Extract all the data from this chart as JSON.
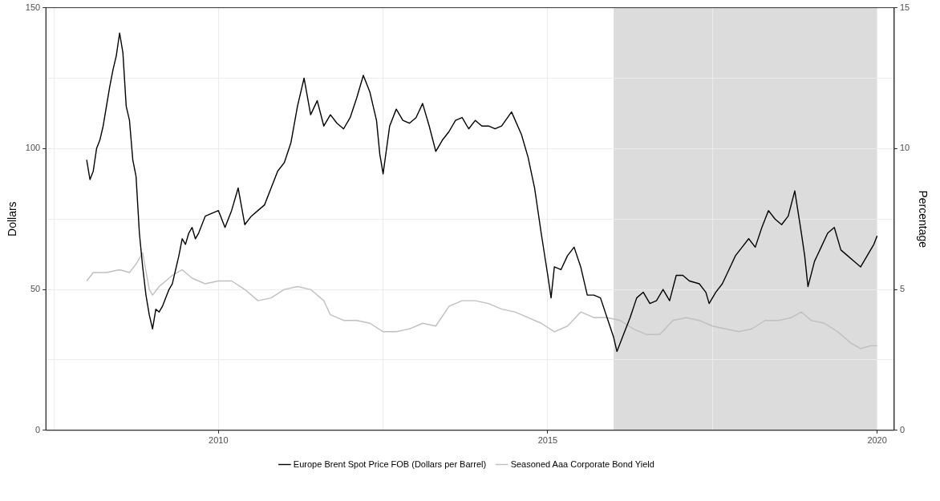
{
  "chart_data": {
    "type": "line",
    "ylabel": "Dollars",
    "y2label": "Percentage",
    "xlim": [
      2007.38,
      2020.26
    ],
    "xticks": [
      {
        "value": 2007.5,
        "label": null
      },
      2010,
      {
        "value": 2012.5,
        "label": null
      },
      2015,
      {
        "value": 2017.5,
        "label": null
      },
      2020
    ],
    "ylim": [
      0,
      150
    ],
    "yticks": [
      0,
      {
        "value": 25,
        "label": null
      },
      50,
      {
        "value": 75,
        "label": null
      },
      100,
      {
        "value": 125,
        "label": null
      },
      150
    ],
    "y2lim": [
      0,
      15
    ],
    "y2ticks": [
      0,
      5,
      10,
      15
    ],
    "grid": true,
    "legend": "bottom",
    "line_style": "solid",
    "marker": "none",
    "bands": [
      {
        "axis": "x",
        "from": 2016.0,
        "to": 2020.0,
        "color": "#dcdcdc"
      }
    ],
    "series": [
      {
        "name": "Europe Brent Spot Price FOB (Dollars per Barrel)",
        "color": "#000000",
        "x": [
          2008.0,
          2008.05,
          2008.1,
          2008.15,
          2008.2,
          2008.25,
          2008.3,
          2008.35,
          2008.4,
          2008.45,
          2008.5,
          2008.55,
          2008.6,
          2008.65,
          2008.7,
          2008.75,
          2008.8,
          2008.85,
          2008.9,
          2008.95,
          2009.0,
          2009.05,
          2009.1,
          2009.15,
          2009.2,
          2009.25,
          2009.3,
          2009.4,
          2009.45,
          2009.5,
          2009.55,
          2009.6,
          2009.65,
          2009.7,
          2009.8,
          2009.9,
          2010.0,
          2010.1,
          2010.2,
          2010.3,
          2010.4,
          2010.5,
          2010.6,
          2010.7,
          2010.8,
          2010.9,
          2011.0,
          2011.1,
          2011.2,
          2011.3,
          2011.4,
          2011.5,
          2011.6,
          2011.7,
          2011.8,
          2011.9,
          2012.0,
          2012.1,
          2012.2,
          2012.3,
          2012.4,
          2012.45,
          2012.5,
          2012.6,
          2012.7,
          2012.8,
          2012.9,
          2013.0,
          2013.1,
          2013.2,
          2013.3,
          2013.4,
          2013.5,
          2013.6,
          2013.7,
          2013.8,
          2013.9,
          2014.0,
          2014.1,
          2014.2,
          2014.3,
          2014.45,
          2014.6,
          2014.7,
          2014.8,
          2014.9,
          2015.0,
          2015.05,
          2015.1,
          2015.2,
          2015.3,
          2015.4,
          2015.5,
          2015.6,
          2015.7,
          2015.8,
          2015.9,
          2016.0,
          2016.05,
          2016.15,
          2016.25,
          2016.35,
          2016.45,
          2016.55,
          2016.65,
          2016.75,
          2016.85,
          2016.95,
          2017.05,
          2017.15,
          2017.3,
          2017.4,
          2017.45,
          2017.55,
          2017.65,
          2017.75,
          2017.85,
          2017.95,
          2018.05,
          2018.15,
          2018.25,
          2018.35,
          2018.45,
          2018.55,
          2018.65,
          2018.75,
          2018.85,
          2018.9,
          2018.95,
          2019.05,
          2019.15,
          2019.25,
          2019.35,
          2019.45,
          2019.55,
          2019.65,
          2019.75,
          2019.85,
          2019.95,
          2020.0
        ],
        "values": [
          96,
          89,
          92,
          100,
          103,
          108,
          115,
          122,
          128,
          133,
          141,
          134,
          115,
          110,
          96,
          90,
          70,
          58,
          48,
          41,
          36,
          43,
          42,
          44,
          47,
          50,
          52,
          62,
          68,
          66,
          70,
          72,
          68,
          70,
          76,
          77,
          78,
          72,
          78,
          86,
          73,
          76,
          78,
          80,
          86,
          92,
          95,
          102,
          115,
          125,
          112,
          117,
          108,
          112,
          109,
          107,
          111,
          118,
          126,
          120,
          110,
          98,
          91,
          108,
          114,
          110,
          109,
          111,
          116,
          108,
          99,
          103,
          106,
          110,
          111,
          107,
          110,
          108,
          108,
          107,
          108,
          113,
          105,
          97,
          86,
          70,
          55,
          47,
          58,
          57,
          62,
          65,
          58,
          48,
          48,
          47,
          40,
          33,
          28,
          34,
          40,
          47,
          49,
          45,
          46,
          50,
          46,
          55,
          55,
          53,
          52,
          49,
          45,
          49,
          52,
          57,
          62,
          65,
          68,
          65,
          72,
          78,
          75,
          73,
          76,
          85,
          70,
          62,
          51,
          60,
          65,
          70,
          72,
          64,
          62,
          60,
          58,
          62,
          66,
          69
        ]
      },
      {
        "name": "Seasoned Aaa Corporate Bond Yield",
        "color": "#bfbfbf",
        "axis": "y2",
        "x": [
          2008.0,
          2008.1,
          2008.3,
          2008.5,
          2008.65,
          2008.75,
          2008.85,
          2008.95,
          2009.0,
          2009.1,
          2009.3,
          2009.45,
          2009.6,
          2009.8,
          2010.0,
          2010.2,
          2010.4,
          2010.6,
          2010.8,
          2011.0,
          2011.2,
          2011.4,
          2011.6,
          2011.7,
          2011.9,
          2012.1,
          2012.3,
          2012.5,
          2012.7,
          2012.9,
          2013.1,
          2013.3,
          2013.5,
          2013.7,
          2013.9,
          2014.1,
          2014.3,
          2014.5,
          2014.7,
          2014.9,
          2015.1,
          2015.3,
          2015.5,
          2015.7,
          2015.9,
          2016.1,
          2016.3,
          2016.5,
          2016.7,
          2016.9,
          2017.1,
          2017.3,
          2017.5,
          2017.7,
          2017.9,
          2018.1,
          2018.3,
          2018.5,
          2018.7,
          2018.85,
          2019.0,
          2019.2,
          2019.4,
          2019.6,
          2019.75,
          2019.9,
          2020.0
        ],
        "values": [
          5.3,
          5.6,
          5.6,
          5.7,
          5.6,
          5.9,
          6.3,
          5.0,
          4.8,
          5.1,
          5.5,
          5.7,
          5.4,
          5.2,
          5.3,
          5.3,
          5.0,
          4.6,
          4.7,
          5.0,
          5.1,
          5.0,
          4.6,
          4.1,
          3.9,
          3.9,
          3.8,
          3.5,
          3.5,
          3.6,
          3.8,
          3.7,
          4.4,
          4.6,
          4.6,
          4.5,
          4.3,
          4.2,
          4.0,
          3.8,
          3.5,
          3.7,
          4.2,
          4.0,
          4.0,
          3.9,
          3.6,
          3.4,
          3.4,
          3.9,
          4.0,
          3.9,
          3.7,
          3.6,
          3.5,
          3.6,
          3.9,
          3.9,
          4.0,
          4.2,
          3.9,
          3.8,
          3.5,
          3.1,
          2.9,
          3.0,
          3.0
        ]
      }
    ]
  }
}
